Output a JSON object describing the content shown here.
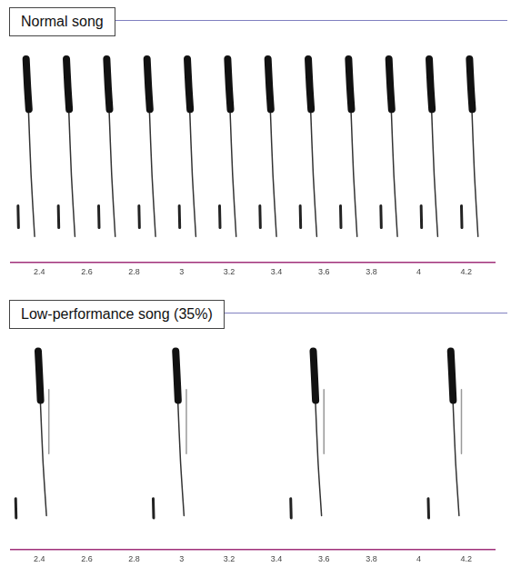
{
  "chart_data": [
    {
      "type": "line",
      "title": "Normal song",
      "xlim": [
        2.28,
        4.32
      ],
      "xticks": [
        2.4,
        2.6,
        2.8,
        3,
        3.2,
        3.4,
        3.6,
        3.8,
        4,
        4.2
      ],
      "ylim": [
        0,
        10
      ],
      "grid": false,
      "tick_labels": "x",
      "series": [
        {
          "color": "#222222",
          "line_style": "medium",
          "x": [
            2.31,
            2.312,
            null,
            2.48,
            2.482,
            null,
            2.65,
            2.652,
            null,
            2.82,
            2.822,
            null,
            2.99,
            2.992,
            null,
            3.16,
            3.162,
            null,
            3.33,
            3.332,
            null,
            3.5,
            3.502,
            null,
            3.67,
            3.672,
            null,
            3.84,
            3.842,
            null,
            4.01,
            4.012,
            null,
            4.18,
            4.182
          ],
          "values": [
            2.6,
            1.6,
            null,
            2.6,
            1.6,
            null,
            2.6,
            1.6,
            null,
            2.6,
            1.6,
            null,
            2.6,
            1.6,
            null,
            2.6,
            1.6,
            null,
            2.6,
            1.6,
            null,
            2.6,
            1.6,
            null,
            2.6,
            1.6,
            null,
            2.6,
            1.6,
            null,
            2.6,
            1.6,
            null,
            2.6,
            1.6
          ]
        },
        {
          "color": "#111111",
          "line_style": "thick",
          "x": [
            2.344,
            2.35,
            2.356,
            null,
            2.514,
            2.52,
            2.526,
            null,
            2.684,
            2.69,
            2.696,
            null,
            2.854,
            2.86,
            2.866,
            null,
            3.024,
            3.03,
            3.036,
            null,
            3.194,
            3.2,
            3.206,
            null,
            3.364,
            3.37,
            3.376,
            null,
            3.534,
            3.54,
            3.546,
            null,
            3.704,
            3.71,
            3.716,
            null,
            3.874,
            3.88,
            3.886,
            null,
            4.044,
            4.05,
            4.056,
            null,
            4.214,
            4.22,
            4.226
          ],
          "values": [
            9.3,
            8,
            7,
            null,
            9.3,
            8,
            7,
            null,
            9.3,
            8,
            7,
            null,
            9.3,
            8,
            7,
            null,
            9.3,
            8,
            7,
            null,
            9.3,
            8,
            7,
            null,
            9.3,
            8,
            7,
            null,
            9.3,
            8,
            7,
            null,
            9.3,
            8,
            7,
            null,
            9.3,
            8,
            7,
            null,
            9.3,
            8,
            7,
            null,
            9.3,
            8,
            7
          ]
        },
        {
          "color": "#333333",
          "line_style": "thin",
          "x": [
            2.354,
            2.365,
            2.38,
            null,
            2.524,
            2.535,
            2.55,
            null,
            2.694,
            2.705,
            2.72,
            null,
            2.864,
            2.875,
            2.89,
            null,
            3.034,
            3.045,
            3.06,
            null,
            3.204,
            3.215,
            3.23,
            null,
            3.374,
            3.385,
            3.4,
            null,
            3.544,
            3.555,
            3.57,
            null,
            3.714,
            3.725,
            3.74,
            null,
            3.884,
            3.895,
            3.91,
            null,
            4.054,
            4.065,
            4.08,
            null,
            4.224,
            4.235,
            4.25
          ],
          "values": [
            7,
            4,
            1.2,
            null,
            7,
            4,
            1.2,
            null,
            7,
            4,
            1.2,
            null,
            7,
            4,
            1.2,
            null,
            7,
            4,
            1.2,
            null,
            7,
            4,
            1.2,
            null,
            7,
            4,
            1.2,
            null,
            7,
            4,
            1.2,
            null,
            7,
            4,
            1.2,
            null,
            7,
            4,
            1.2,
            null,
            7,
            4,
            1.2,
            null,
            7,
            4,
            1.2
          ]
        }
      ]
    },
    {
      "type": "line",
      "title": "Low-performance song (35%)",
      "xlim": [
        2.28,
        4.32
      ],
      "xticks": [
        2.4,
        2.6,
        2.8,
        3,
        3.2,
        3.4,
        3.6,
        3.8,
        4,
        4.2
      ],
      "ylim": [
        0,
        10
      ],
      "grid": false,
      "tick_labels": "x",
      "series": [
        {
          "color": "#222222",
          "line_style": "medium",
          "x": [
            2.3,
            2.302,
            null,
            2.88,
            2.882,
            null,
            3.46,
            3.462,
            null,
            4.04,
            4.042
          ],
          "values": [
            2.4,
            1.5,
            null,
            2.4,
            1.5,
            null,
            2.4,
            1.5,
            null,
            2.4,
            1.5
          ]
        },
        {
          "color": "#111111",
          "line_style": "thick",
          "x": [
            2.395,
            2.4,
            2.405,
            null,
            2.975,
            2.98,
            2.985,
            null,
            3.555,
            3.56,
            3.565,
            null,
            4.135,
            4.14,
            4.145
          ],
          "values": [
            9.3,
            8.2,
            7,
            null,
            9.3,
            8.2,
            7,
            null,
            9.3,
            8.2,
            7,
            null,
            9.3,
            8.2,
            7
          ]
        },
        {
          "color": "#333333",
          "line_style": "thin",
          "x": [
            2.404,
            2.415,
            2.43,
            null,
            2.984,
            2.995,
            3.01,
            null,
            3.564,
            3.575,
            3.59,
            null,
            4.144,
            4.155,
            4.17
          ],
          "values": [
            7,
            4.2,
            1.6,
            null,
            7,
            4.2,
            1.6,
            null,
            7,
            4.2,
            1.6,
            null,
            7,
            4.2,
            1.6
          ]
        },
        {
          "color": "#999999",
          "line_style": "thin",
          "x": [
            2.44,
            2.44,
            null,
            3.02,
            3.02,
            null,
            3.6,
            3.6,
            null,
            4.18,
            4.18
          ],
          "values": [
            7.5,
            4.5,
            null,
            7.5,
            4.5,
            null,
            7.5,
            4.5,
            null,
            7.5,
            4.5
          ]
        }
      ]
    }
  ]
}
